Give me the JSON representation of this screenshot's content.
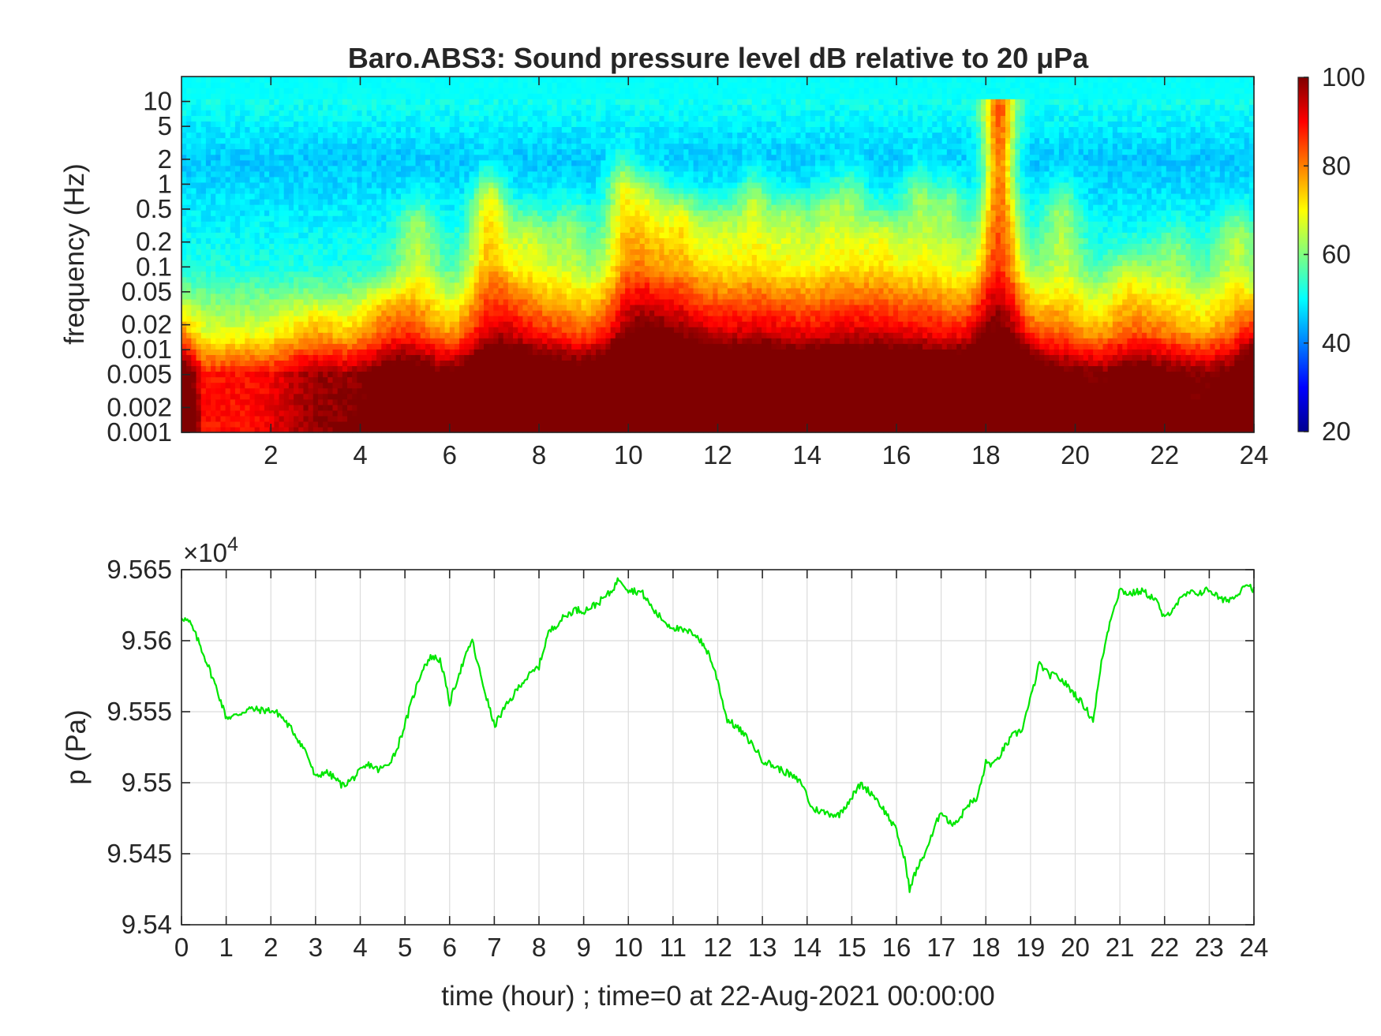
{
  "chart_data": [
    {
      "type": "heatmap",
      "title": "Baro.ABS3: Sound pressure level dB relative to 20 μPa",
      "ylabel": "frequency (Hz)",
      "xlabel": "",
      "xlim": [
        0,
        24
      ],
      "x_ticks": [
        2,
        4,
        6,
        8,
        10,
        12,
        14,
        16,
        18,
        20,
        22,
        24
      ],
      "y_scale": "log",
      "ylim": [
        0.001,
        20
      ],
      "y_ticks": [
        0.001,
        0.002,
        0.005,
        0.01,
        0.02,
        0.05,
        0.1,
        0.2,
        0.5,
        1,
        2,
        5,
        10
      ],
      "y_tick_labels": [
        "0.001",
        "0.002",
        "0.005",
        "0.01",
        "0.02",
        "0.05",
        "0.1",
        "0.2",
        "0.5",
        "1",
        "2",
        "5",
        "10"
      ],
      "colorbar": {
        "colormap": "jet",
        "range": [
          20,
          100
        ],
        "ticks": [
          20,
          40,
          60,
          80,
          100
        ]
      },
      "events": [
        {
          "time": 3.0,
          "strength": 0.35,
          "top_log_freq": -1.8
        },
        {
          "time": 4.5,
          "strength": 0.45,
          "top_log_freq": -1.6
        },
        {
          "time": 5.3,
          "strength": 0.55,
          "top_log_freq": -0.6
        },
        {
          "time": 6.9,
          "strength": 0.95,
          "top_log_freq": -0.3
        },
        {
          "time": 7.8,
          "strength": 0.6,
          "top_log_freq": -0.7
        },
        {
          "time": 8.7,
          "strength": 0.5,
          "top_log_freq": -0.6
        },
        {
          "time": 9.9,
          "strength": 0.85,
          "top_log_freq": -0.1
        },
        {
          "time": 10.5,
          "strength": 0.7,
          "top_log_freq": -0.3
        },
        {
          "time": 11.2,
          "strength": 0.8,
          "top_log_freq": -0.5
        },
        {
          "time": 12.0,
          "strength": 0.6,
          "top_log_freq": -0.6
        },
        {
          "time": 12.8,
          "strength": 0.7,
          "top_log_freq": -0.3
        },
        {
          "time": 13.6,
          "strength": 0.6,
          "top_log_freq": -0.5
        },
        {
          "time": 14.4,
          "strength": 0.55,
          "top_log_freq": -0.4
        },
        {
          "time": 15.0,
          "strength": 0.5,
          "top_log_freq": -0.2
        },
        {
          "time": 15.7,
          "strength": 0.65,
          "top_log_freq": -0.7
        },
        {
          "time": 16.5,
          "strength": 0.55,
          "top_log_freq": -0.2
        },
        {
          "time": 17.2,
          "strength": 0.5,
          "top_log_freq": -0.3
        },
        {
          "time": 18.3,
          "strength": 1.4,
          "top_log_freq": 0.9
        },
        {
          "time": 19.7,
          "strength": 0.55,
          "top_log_freq": -0.4
        },
        {
          "time": 21.2,
          "strength": 0.55,
          "top_log_freq": -1.2
        },
        {
          "time": 22.2,
          "strength": 0.4,
          "top_log_freq": -0.9
        },
        {
          "time": 23.6,
          "strength": 0.55,
          "top_log_freq": -0.7
        }
      ]
    },
    {
      "type": "line",
      "title": "",
      "xlabel": "time (hour) ; time=0 at 22-Aug-2021 00:00:00",
      "ylabel": "p (Pa)",
      "y_multiplier": "×10",
      "y_multiplier_exp": "4",
      "xlim": [
        0,
        24
      ],
      "ylim": [
        9.54,
        9.565
      ],
      "x_ticks": [
        0,
        1,
        2,
        3,
        4,
        5,
        6,
        7,
        8,
        9,
        10,
        11,
        12,
        13,
        14,
        15,
        16,
        17,
        18,
        19,
        20,
        21,
        22,
        23,
        24
      ],
      "y_ticks": [
        9.54,
        9.545,
        9.55,
        9.555,
        9.56,
        9.565
      ],
      "y_tick_labels": [
        "9.54",
        "9.545",
        "9.55",
        "9.555",
        "9.56",
        "9.565"
      ],
      "grid": true,
      "line_color": "#00e600",
      "series": [
        {
          "x": [
            0,
            0.2,
            0.4,
            0.6,
            0.8,
            1.0,
            1.2,
            1.5,
            1.8,
            2.0,
            2.2,
            2.5,
            2.8,
            3.0,
            3.2,
            3.4,
            3.6,
            3.8,
            4.0,
            4.2,
            4.4,
            4.6,
            4.8,
            5.0,
            5.2,
            5.4,
            5.6,
            5.8,
            6.0,
            6.2,
            6.4,
            6.5,
            6.6,
            6.8,
            7.0,
            7.2,
            7.4,
            7.6,
            7.8,
            8.0,
            8.2,
            8.5,
            8.8,
            9.0,
            9.3,
            9.6,
            9.8,
            10.0,
            10.3,
            10.6,
            10.9,
            11.2,
            11.5,
            11.8,
            12.0,
            12.2,
            12.5,
            12.8,
            13.0,
            13.3,
            13.6,
            13.9,
            14.1,
            14.4,
            14.7,
            15.0,
            15.2,
            15.5,
            15.8,
            16.0,
            16.2,
            16.3,
            16.4,
            16.6,
            16.8,
            17.0,
            17.2,
            17.4,
            17.6,
            17.8,
            18.0,
            18.2,
            18.4,
            18.6,
            18.8,
            19.0,
            19.2,
            19.4,
            19.6,
            19.8,
            20.0,
            20.2,
            20.4,
            20.6,
            20.8,
            21.0,
            21.2,
            21.5,
            21.8,
            22.0,
            22.2,
            22.5,
            22.8,
            23.0,
            23.3,
            23.6,
            23.8,
            24.0
          ],
          "y": [
            9.5617,
            9.5612,
            9.5598,
            9.5582,
            9.5565,
            9.5546,
            9.5547,
            9.5552,
            9.5551,
            9.5551,
            9.5548,
            9.5536,
            9.5521,
            9.5503,
            9.5508,
            9.5504,
            9.5498,
            9.5502,
            9.5508,
            9.5513,
            9.5509,
            9.5512,
            9.5522,
            9.5541,
            9.5562,
            9.5581,
            9.5589,
            9.5586,
            9.5556,
            9.5576,
            9.5592,
            9.5601,
            9.5587,
            9.5563,
            9.554,
            9.5551,
            9.556,
            9.557,
            9.5576,
            9.5582,
            9.5605,
            9.5615,
            9.5622,
            9.5621,
            9.5626,
            9.5634,
            9.5644,
            9.5636,
            9.5634,
            9.562,
            9.5611,
            9.5607,
            9.5605,
            9.5591,
            9.5572,
            9.5545,
            9.5537,
            9.5526,
            9.5516,
            9.5511,
            9.5506,
            9.5499,
            9.5482,
            9.5479,
            9.5477,
            9.549,
            9.5499,
            9.5491,
            9.5477,
            9.5466,
            9.5444,
            9.5424,
            9.5435,
            9.5448,
            9.5463,
            9.5481,
            9.5471,
            9.5474,
            9.5485,
            9.5488,
            9.5514,
            9.5513,
            9.5524,
            9.5533,
            9.5537,
            9.5559,
            9.5584,
            9.5576,
            9.5575,
            9.5569,
            9.5562,
            9.5554,
            9.5544,
            9.5587,
            9.5617,
            9.5636,
            9.5633,
            9.5635,
            9.5629,
            9.5615,
            9.5624,
            9.5633,
            9.5634,
            9.5636,
            9.5628,
            9.5631,
            9.5641,
            9.5636
          ]
        }
      ]
    }
  ]
}
